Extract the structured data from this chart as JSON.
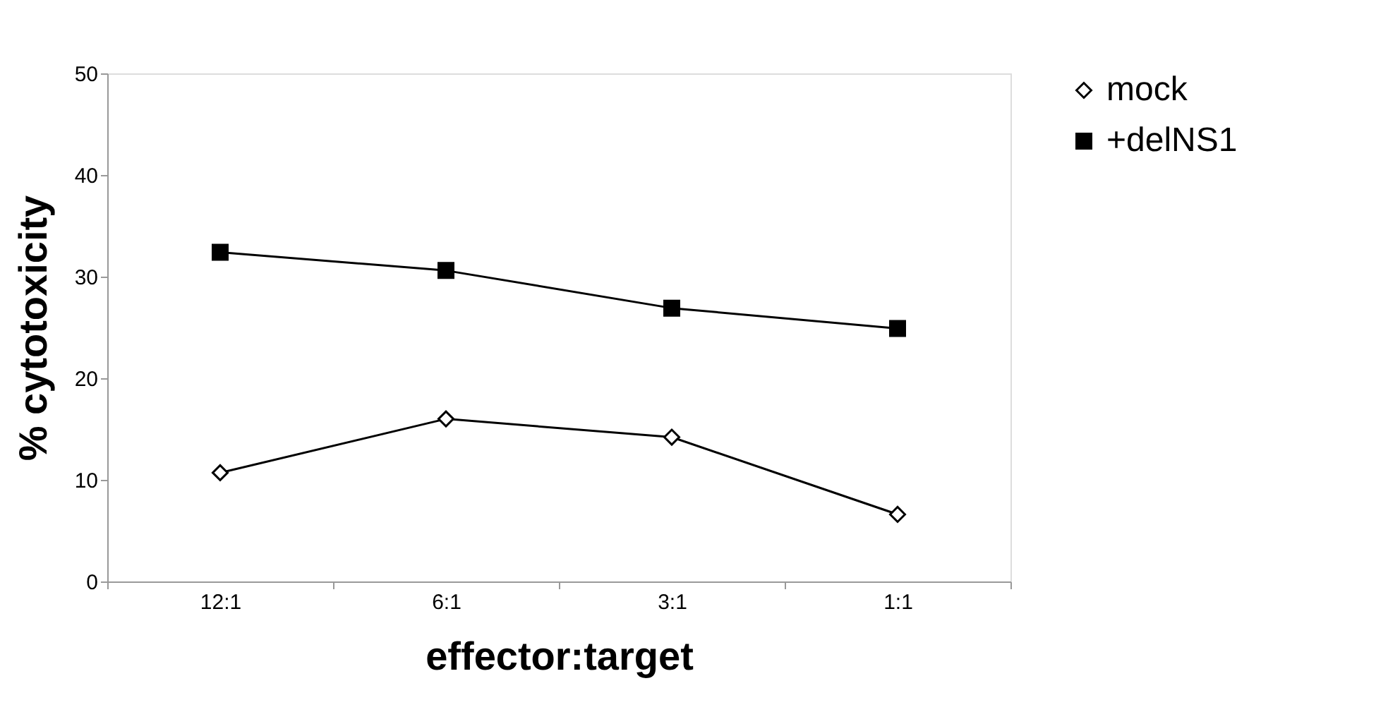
{
  "chart_data": {
    "type": "line",
    "xlabel": "effector:target",
    "ylabel": "% cytotoxicity",
    "categories": [
      "12:1",
      "6:1",
      "3:1",
      "1:1"
    ],
    "series": [
      {
        "name": "mock",
        "color": "#000000",
        "marker": "diamond",
        "values": [
          10.7,
          16.0,
          14.2,
          6.6
        ]
      },
      {
        "name": "+delNS1",
        "color": "#000000",
        "marker": "square",
        "values": [
          32.4,
          30.6,
          26.9,
          24.9
        ]
      }
    ],
    "ylim": [
      0,
      50
    ],
    "yticks": [
      0,
      10,
      20,
      30,
      40,
      50
    ],
    "grid": false,
    "legend": "right",
    "line_style": "solid"
  }
}
